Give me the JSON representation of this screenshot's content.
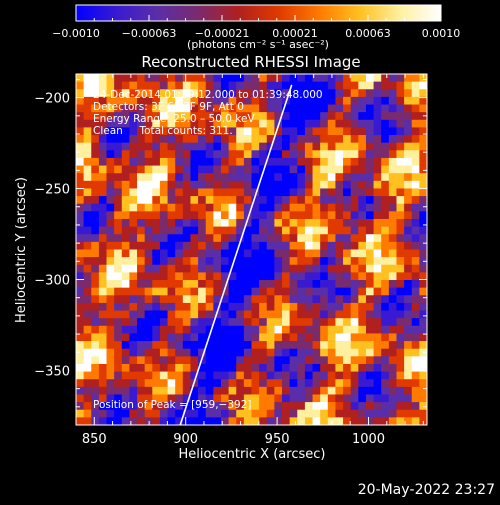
{
  "chart_data": {
    "type": "heatmap",
    "title": "Reconstructed RHESSI Image",
    "xlabel": "Heliocentric X (arcsec)",
    "ylabel": "Heliocentric Y (arcsec)",
    "xlim": [
      840,
      1032
    ],
    "ylim": [
      -380,
      -187
    ],
    "x_ticks": [
      850,
      900,
      950,
      1000
    ],
    "y_ticks": [
      -200,
      -250,
      -300,
      -350
    ],
    "x_tick_labels": [
      "850",
      "900",
      "950",
      "1000"
    ],
    "y_tick_labels": [
      "−200",
      "−250",
      "−300",
      "−350"
    ],
    "colorbar": {
      "range": [
        -0.001,
        0.001
      ],
      "tick_labels": [
        "−0.0010",
        "−0.00063",
        "−0.00021",
        "0.00021",
        "0.00063",
        "0.0010"
      ],
      "units_label": "(photons cm⁻² s⁻¹ asec⁻²)",
      "colors": [
        "#0000ff",
        "#3a1ad0",
        "#5a2ea8",
        "#7a2b6e",
        "#b02020",
        "#e03a00",
        "#ff7a00",
        "#ffc020",
        "#fff0a0",
        "#ffffff"
      ]
    },
    "annotations": [
      "24‑Dec‑2014 01:39:12.000 to 01:39:48.000",
      "Detectors: 3F 6F 7F 9F, Att 0",
      "Energy Range: 25.0 – 50.0 keV",
      "Clean     Total counts: 311.",
      "Position of Peak = [959,−392]"
    ],
    "limb_line": [
      [
        897,
        -380
      ],
      [
        958,
        -193
      ]
    ]
  },
  "footer": {
    "timestamp": "20‑May‑2022 23:27"
  }
}
